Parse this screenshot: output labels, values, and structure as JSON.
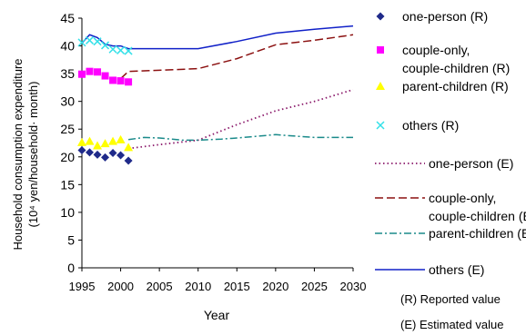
{
  "chart_data": {
    "type": "line",
    "xlabel": "Year",
    "ylabel_line1": "Household consumption expenditure",
    "ylabel_line2": "(10⁴ yen/household· month)",
    "xlim": [
      1995,
      2030
    ],
    "ylim": [
      0,
      45
    ],
    "xticks": [
      "1995",
      "2000",
      "2005",
      "2010",
      "2015",
      "2020",
      "2025",
      "2030"
    ],
    "yticks": [
      "0",
      "5",
      "10",
      "15",
      "20",
      "25",
      "30",
      "35",
      "40",
      "45"
    ],
    "grid": false,
    "legend_position": "right",
    "series": [
      {
        "name": "one-person (R)",
        "kind": "marker",
        "marker": "diamond",
        "color": "#1f2a8a",
        "x": [
          1995,
          1996,
          1997,
          1998,
          1999,
          2000,
          2001
        ],
        "y": [
          21.2,
          20.8,
          20.4,
          19.9,
          20.7,
          20.3,
          19.3
        ]
      },
      {
        "name": "couple-only, couple-children (R)",
        "kind": "marker",
        "marker": "square",
        "color": "#ff00ff",
        "x": [
          1995,
          1996,
          1997,
          1998,
          1999,
          2000,
          2001
        ],
        "y": [
          34.9,
          35.4,
          35.3,
          34.6,
          33.8,
          33.7,
          33.5
        ]
      },
      {
        "name": "parent-children (R)",
        "kind": "marker",
        "marker": "triangle",
        "color": "#ffff00",
        "x": [
          1995,
          1996,
          1997,
          1998,
          1999,
          2000,
          2001
        ],
        "y": [
          22.6,
          22.8,
          22.0,
          22.4,
          22.8,
          23.1,
          21.7
        ]
      },
      {
        "name": "others (R)",
        "kind": "marker",
        "marker": "x",
        "color": "#33e0e8",
        "x": [
          1995,
          1996,
          1997,
          1998,
          1999,
          2000,
          2001
        ],
        "y": [
          40.6,
          41.0,
          40.8,
          40.1,
          39.4,
          39.2,
          39.1
        ]
      },
      {
        "name": "one-person (E)",
        "kind": "line",
        "dash": "dotted",
        "color": "#8b1a6b",
        "x": [
          2001,
          2005,
          2010,
          2015,
          2020,
          2025,
          2030
        ],
        "y": [
          21.5,
          22.2,
          23.0,
          25.8,
          28.3,
          30.0,
          32.1
        ]
      },
      {
        "name": "couple-only, couple-children (E)",
        "kind": "line",
        "dash": "dashed",
        "color": "#8b1010",
        "x": [
          2000,
          2001,
          2005,
          2010,
          2015,
          2020,
          2025,
          2030
        ],
        "y": [
          34.1,
          35.4,
          35.6,
          35.9,
          37.7,
          40.2,
          41.0,
          42.0
        ]
      },
      {
        "name": "parent-children (E)",
        "kind": "line",
        "dash": "dashdot",
        "color": "#1a8a8a",
        "x": [
          2001,
          2003,
          2005,
          2008,
          2010,
          2013,
          2015,
          2020,
          2023,
          2025,
          2030
        ],
        "y": [
          23.1,
          23.5,
          23.4,
          23.0,
          23.0,
          23.2,
          23.4,
          24.0,
          23.7,
          23.5,
          23.5
        ]
      },
      {
        "name": "others (E)",
        "kind": "line",
        "dash": "solid",
        "color": "#1020c8",
        "x": [
          1995,
          1996,
          1997,
          1998,
          1999,
          2000,
          2001,
          2005,
          2010,
          2015,
          2020,
          2025,
          2030
        ],
        "y": [
          40.5,
          42.0,
          41.5,
          40.3,
          40.0,
          40.0,
          39.5,
          39.5,
          39.5,
          40.8,
          42.3,
          43.0,
          43.6
        ]
      }
    ],
    "legend_labels": [
      "one-person (R)",
      "couple-only,",
      "couple-children (R)",
      "parent-children (R)",
      "others (R)",
      "one-person (E)",
      "couple-only,",
      "couple-children (E)",
      "parent-children (E)",
      "others (E)"
    ]
  },
  "notes": {
    "reported": "(R) Reported value",
    "estimated": "(E) Estimated value"
  }
}
